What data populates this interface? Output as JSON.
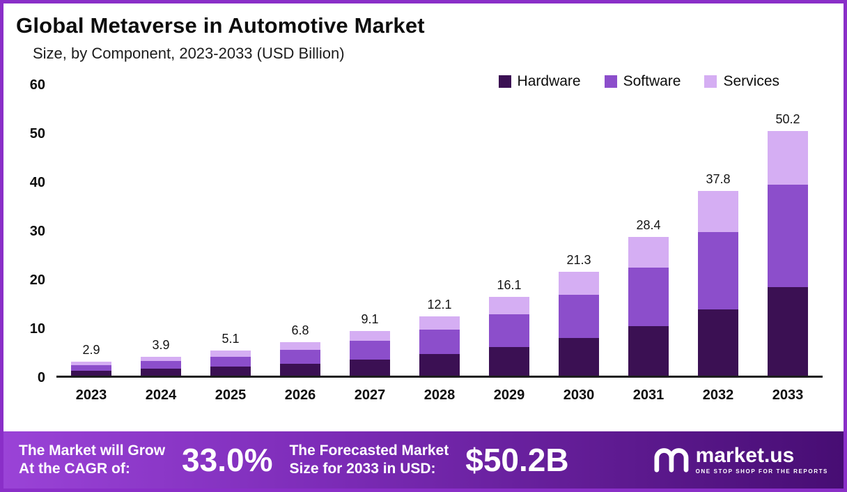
{
  "header": {
    "title": "Global Metaverse in Automotive Market",
    "subtitle": "Size, by Component, 2023-2033 (USD Billion)"
  },
  "chart_data": {
    "type": "bar",
    "stacked": true,
    "title": "Global Metaverse in Automotive Market Size, by Component, 2023-2033 (USD Billion)",
    "categories": [
      "2023",
      "2024",
      "2025",
      "2026",
      "2027",
      "2028",
      "2029",
      "2030",
      "2031",
      "2032",
      "2033"
    ],
    "series": [
      {
        "name": "Hardware",
        "color": "#3b1053",
        "values": [
          1.0,
          1.4,
          1.8,
          2.4,
          3.3,
          4.4,
          5.8,
          7.7,
          10.2,
          13.6,
          18.1
        ]
      },
      {
        "name": "Software",
        "color": "#8c4ecb",
        "values": [
          1.2,
          1.6,
          2.1,
          2.9,
          3.8,
          5.1,
          6.8,
          8.9,
          11.9,
          15.9,
          21.1
        ]
      },
      {
        "name": "Services",
        "color": "#d5aef3",
        "values": [
          0.7,
          0.9,
          1.2,
          1.5,
          2.0,
          2.6,
          3.5,
          4.7,
          6.3,
          8.3,
          11.0
        ]
      }
    ],
    "totals": [
      "2.9",
      "3.9",
      "5.1",
      "6.8",
      "9.1",
      "12.1",
      "16.1",
      "21.3",
      "28.4",
      "37.8",
      "50.2"
    ],
    "ylim": [
      0,
      60
    ],
    "yticks": [
      0,
      10,
      20,
      30,
      40,
      50,
      60
    ],
    "legend_position": "top-right",
    "grid": false
  },
  "footer": {
    "cagr_label_line1": "The Market will Grow",
    "cagr_label_line2": "At the CAGR of:",
    "cagr_value": "33.0%",
    "forecast_label_line1": "The Forecasted Market",
    "forecast_label_line2": "Size for 2033 in USD:",
    "forecast_value": "$50.2B",
    "brand_name": "market.us",
    "brand_tagline": "ONE STOP SHOP FOR THE REPORTS"
  },
  "colors": {
    "border": "#8a2fc8",
    "banner_gradient_left": "#9a43d7",
    "banner_gradient_mid": "#7d2cb8",
    "banner_gradient_right": "#470d73",
    "axis_line": "#1d1d1d",
    "text": "#0d0d0d"
  }
}
